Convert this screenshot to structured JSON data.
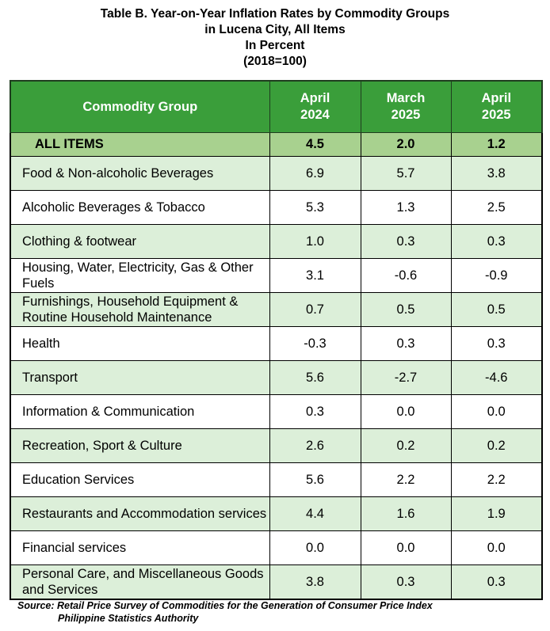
{
  "title": {
    "line1": "Table B. Year-on-Year Inflation Rates by Commodity Groups",
    "line2": "in Lucena City, All Items",
    "line3": "In Percent",
    "line4": "(2018=100)"
  },
  "table": {
    "headers": {
      "group": "Commodity Group",
      "col1_line1": "April",
      "col1_line2": "2024",
      "col2_line1": "March",
      "col2_line2": "2025",
      "col3_line1": "April",
      "col3_line2": "2025"
    },
    "all_items": {
      "name": "ALL ITEMS",
      "values": [
        "4.5",
        "2.0",
        "1.2"
      ]
    },
    "rows": [
      {
        "name": "Food & Non-alcoholic Beverages",
        "values": [
          "6.9",
          "5.7",
          "3.8"
        ]
      },
      {
        "name": "Alcoholic Beverages & Tobacco",
        "values": [
          "5.3",
          "1.3",
          "2.5"
        ]
      },
      {
        "name": "Clothing & footwear",
        "values": [
          "1.0",
          "0.3",
          "0.3"
        ]
      },
      {
        "name": "Housing, Water, Electricity, Gas & Other Fuels",
        "values": [
          "3.1",
          "-0.6",
          "-0.9"
        ]
      },
      {
        "name": "Furnishings, Household Equipment & Routine Household Maintenance",
        "values": [
          "0.7",
          "0.5",
          "0.5"
        ]
      },
      {
        "name": "Health",
        "values": [
          "-0.3",
          "0.3",
          "0.3"
        ]
      },
      {
        "name": "Transport",
        "values": [
          "5.6",
          "-2.7",
          "-4.6"
        ]
      },
      {
        "name": "Information & Communication",
        "values": [
          "0.3",
          "0.0",
          "0.0"
        ]
      },
      {
        "name": "Recreation, Sport & Culture",
        "values": [
          "2.6",
          "0.2",
          "0.2"
        ]
      },
      {
        "name": "Education Services",
        "values": [
          "5.6",
          "2.2",
          "2.2"
        ]
      },
      {
        "name": "Restaurants and Accommodation services",
        "values": [
          "4.4",
          "1.6",
          "1.9"
        ]
      },
      {
        "name": "Financial services",
        "values": [
          "0.0",
          "0.0",
          "0.0"
        ]
      },
      {
        "name": "Personal Care, and Miscellaneous Goods and Services",
        "values": [
          "3.8",
          "0.3",
          "0.3"
        ]
      }
    ]
  },
  "source": {
    "line1": "Source: Retail Price Survey of Commodities for the Generation of Consumer Price Index",
    "line2": "Philippine Statistics Authority"
  },
  "colors": {
    "header_bg": "#3a9e3a",
    "all_items_bg": "#a8d18f",
    "shaded_row_bg": "#dcefd9"
  }
}
